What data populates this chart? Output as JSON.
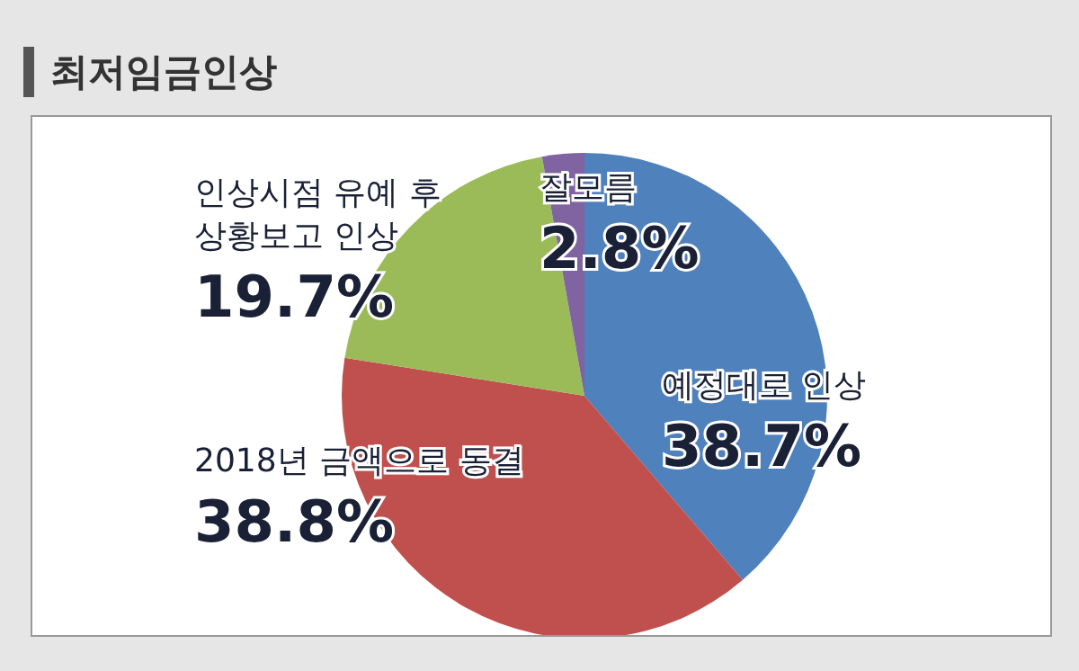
{
  "chart_data": {
    "type": "pie",
    "title": "최저임금인상",
    "categories": [
      "예정대로 인상",
      "2018년 금액으로 동결",
      "인상시점 유예 후 상황보고 인상",
      "잘모름"
    ],
    "values": [
      38.7,
      38.8,
      19.7,
      2.8
    ],
    "colors": [
      "#4f81bd",
      "#c0504d",
      "#9bbb59",
      "#8064a2"
    ],
    "value_labels": [
      "38.7%",
      "38.8%",
      "19.7%",
      "2.8%"
    ],
    "legend": false
  }
}
